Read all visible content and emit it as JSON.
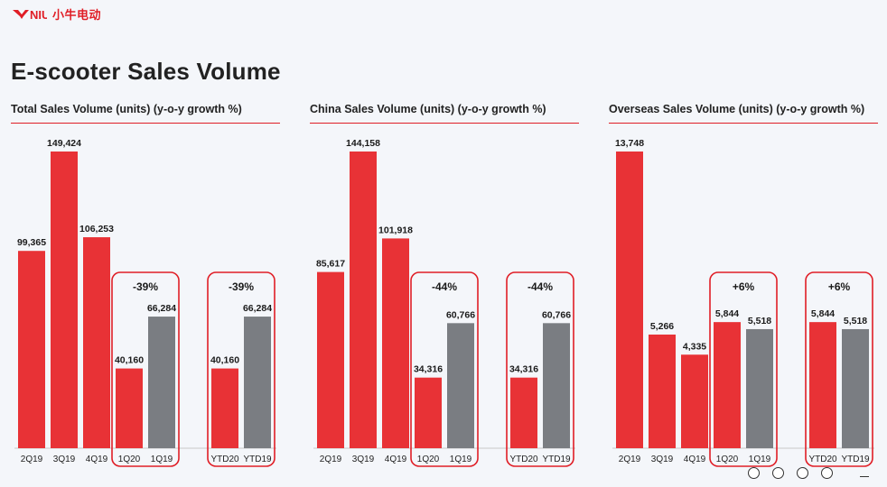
{
  "brand": {
    "logo_text": "NIU",
    "cn_text": "小牛电动"
  },
  "page": {
    "title": "E-scooter Sales Volume"
  },
  "colors": {
    "accent": "#e01e26",
    "bar_red": "#e83236",
    "bar_gray": "#7a7d82"
  },
  "chart_data": [
    {
      "type": "bar",
      "title": "Total Sales Volume (units) (y-o-y growth %)",
      "categories": [
        "2Q19",
        "3Q19",
        "4Q19",
        "1Q20",
        "1Q19",
        "YTD20",
        "YTD19"
      ],
      "values": [
        99365,
        149424,
        106253,
        40160,
        66284,
        40160,
        66284
      ],
      "value_labels": [
        "99,365",
        "149,424",
        "106,253",
        "40,160",
        "66,284",
        "40,160",
        "66,284"
      ],
      "bar_colors": [
        "red",
        "red",
        "red",
        "red",
        "gray",
        "red",
        "gray"
      ],
      "comparisons": [
        {
          "categories": [
            "1Q20",
            "1Q19"
          ],
          "growth": "-39%"
        },
        {
          "categories": [
            "YTD20",
            "YTD19"
          ],
          "growth": "-39%"
        }
      ],
      "ylim": [
        0,
        149424
      ]
    },
    {
      "type": "bar",
      "title": "China Sales Volume (units) (y-o-y growth %)",
      "categories": [
        "2Q19",
        "3Q19",
        "4Q19",
        "1Q20",
        "1Q19",
        "YTD20",
        "YTD19"
      ],
      "values": [
        85617,
        144158,
        101918,
        34316,
        60766,
        34316,
        60766
      ],
      "value_labels": [
        "85,617",
        "144,158",
        "101,918",
        "34,316",
        "60,766",
        "34,316",
        "60,766"
      ],
      "bar_colors": [
        "red",
        "red",
        "red",
        "red",
        "gray",
        "red",
        "gray"
      ],
      "comparisons": [
        {
          "categories": [
            "1Q20",
            "1Q19"
          ],
          "growth": "-44%"
        },
        {
          "categories": [
            "YTD20",
            "YTD19"
          ],
          "growth": "-44%"
        }
      ],
      "ylim": [
        0,
        144158
      ]
    },
    {
      "type": "bar",
      "title": "Overseas Sales Volume (units) (y-o-y growth %)",
      "categories": [
        "2Q19",
        "3Q19",
        "4Q19",
        "1Q20",
        "1Q19",
        "YTD20",
        "YTD19"
      ],
      "values": [
        13748,
        5266,
        4335,
        5844,
        5518,
        5844,
        5518
      ],
      "value_labels": [
        "13,748",
        "5,266",
        "4,335",
        "5,844",
        "5,518",
        "5,844",
        "5,518"
      ],
      "bar_colors": [
        "red",
        "red",
        "red",
        "red",
        "gray",
        "red",
        "gray"
      ],
      "comparisons": [
        {
          "categories": [
            "1Q20",
            "1Q19"
          ],
          "growth": "+6%"
        },
        {
          "categories": [
            "YTD20",
            "YTD19"
          ],
          "growth": "+6%"
        }
      ],
      "ylim": [
        0,
        13748
      ]
    }
  ]
}
